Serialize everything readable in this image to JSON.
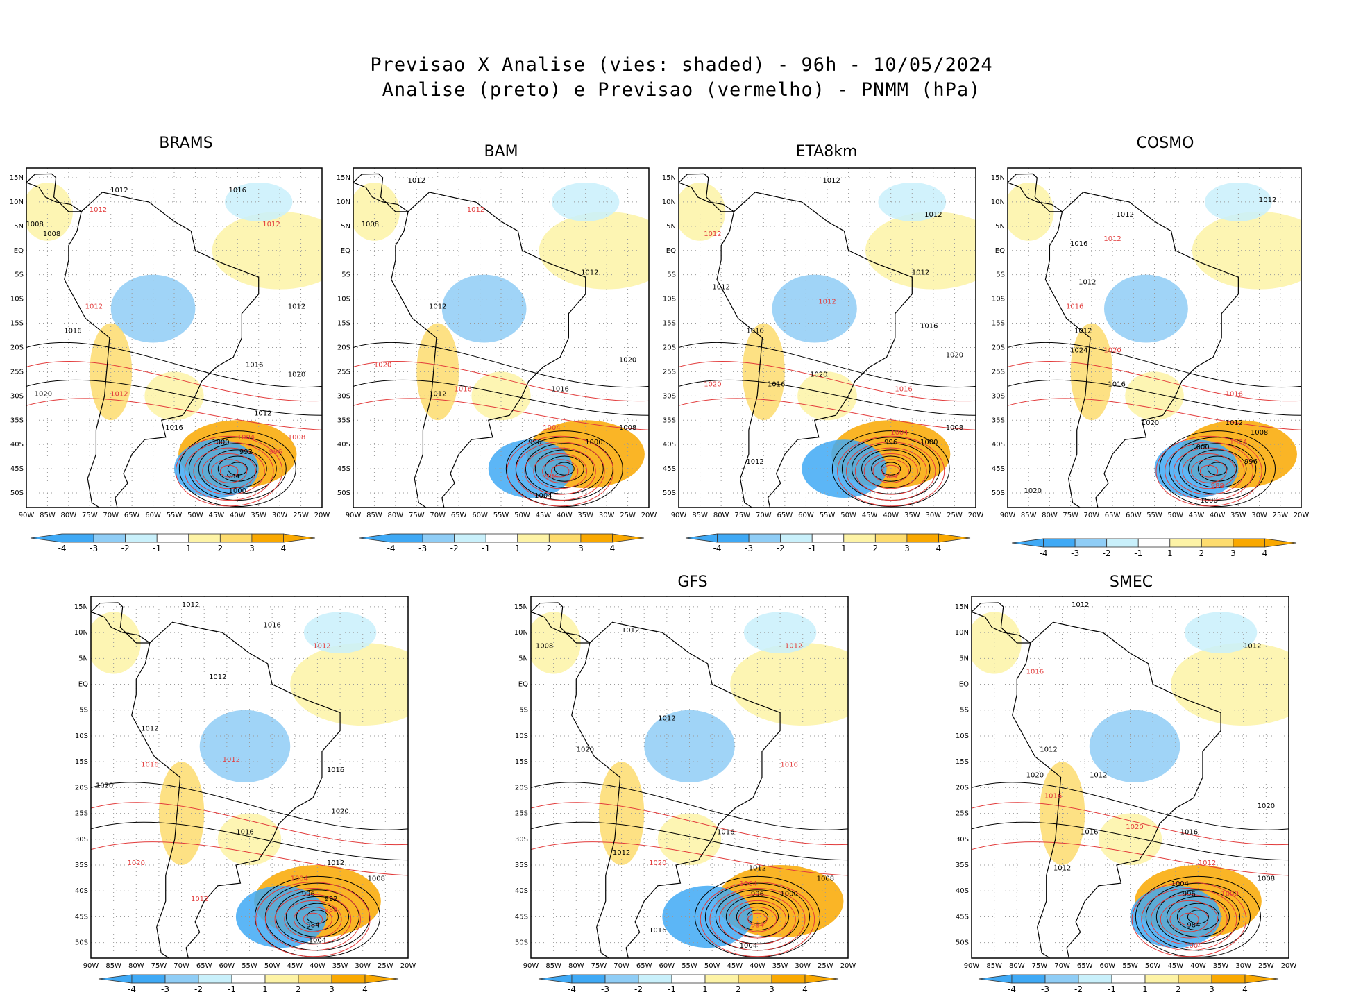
{
  "figure": {
    "title_line1": "Previsao X Analise (vies: shaded) - 96h - 10/05/2024",
    "title_line2": "Analise (preto) e Previsao (vermelho) - PNMM (hPa)"
  },
  "colors": {
    "neg4": "#3fa9f5",
    "neg3": "#8fcdf6",
    "neg2": "#c9f0fb",
    "pos2": "#fdf3a6",
    "pos3": "#fddc6e",
    "pos4": "#f9a800",
    "analysis": "#000000",
    "forecast": "#e23b3b",
    "grid": "#9a9a9a"
  },
  "axes": {
    "lat_labels": [
      "15N",
      "10N",
      "5N",
      "EQ",
      "5S",
      "10S",
      "15S",
      "20S",
      "25S",
      "30S",
      "35S",
      "40S",
      "45S",
      "50S"
    ],
    "lon_labels": [
      "90W",
      "85W",
      "80W",
      "75W",
      "70W",
      "65W",
      "60W",
      "55W",
      "50W",
      "45W",
      "40W",
      "35W",
      "30W",
      "25W",
      "20W"
    ]
  },
  "colorbar": {
    "labels": [
      "-4",
      "-3",
      "-2",
      "-1",
      "1",
      "2",
      "3",
      "4"
    ]
  },
  "panels": [
    {
      "id": "brams",
      "title": "BRAMS",
      "isobars": [
        {
          "text": "1016",
          "lon": -40,
          "lat": 12
        },
        {
          "text": "1012",
          "lon": -68,
          "lat": 12
        },
        {
          "text": "1012",
          "lon": -73,
          "lat": 8
        },
        {
          "text": "1008",
          "lon": -88,
          "lat": 5
        },
        {
          "text": "1008",
          "lon": -84,
          "lat": 3
        },
        {
          "text": "1012",
          "lon": -32,
          "lat": 5
        },
        {
          "text": "1012",
          "lon": -26,
          "lat": -12
        },
        {
          "text": "1016",
          "lon": -79,
          "lat": -17
        },
        {
          "text": "1012",
          "lon": -74,
          "lat": -12
        },
        {
          "text": "1016",
          "lon": -36,
          "lat": -24
        },
        {
          "text": "1020",
          "lon": -86,
          "lat": -30
        },
        {
          "text": "1012",
          "lon": -68,
          "lat": -30
        },
        {
          "text": "1016",
          "lon": -55,
          "lat": -37
        },
        {
          "text": "1012",
          "lon": -34,
          "lat": -34
        },
        {
          "text": "1004",
          "lon": -38,
          "lat": -39
        },
        {
          "text": "1000",
          "lon": -44,
          "lat": -40
        },
        {
          "text": "992",
          "lon": -38,
          "lat": -42
        },
        {
          "text": "996",
          "lon": -31,
          "lat": -42
        },
        {
          "text": "984",
          "lon": -41,
          "lat": -47
        },
        {
          "text": "1000",
          "lon": -40,
          "lat": -50
        },
        {
          "text": "1008",
          "lon": -26,
          "lat": -39
        },
        {
          "text": "1020",
          "lon": -26,
          "lat": -26
        }
      ]
    },
    {
      "id": "bam",
      "title": "BAM",
      "isobars": [
        {
          "text": "1012",
          "lon": -75,
          "lat": 14
        },
        {
          "text": "1008",
          "lon": -86,
          "lat": 5
        },
        {
          "text": "1012",
          "lon": -61,
          "lat": 8
        },
        {
          "text": "1012",
          "lon": -34,
          "lat": -5
        },
        {
          "text": "1012",
          "lon": -70,
          "lat": -12
        },
        {
          "text": "1020",
          "lon": -83,
          "lat": -24
        },
        {
          "text": "1016",
          "lon": -41,
          "lat": -29
        },
        {
          "text": "1020",
          "lon": -25,
          "lat": -23
        },
        {
          "text": "1016",
          "lon": -64,
          "lat": -29
        },
        {
          "text": "1012",
          "lon": -70,
          "lat": -30
        },
        {
          "text": "1008",
          "lon": -25,
          "lat": -37
        },
        {
          "text": "1004",
          "lon": -43,
          "lat": -37
        },
        {
          "text": "1000",
          "lon": -33,
          "lat": -40
        },
        {
          "text": "996",
          "lon": -47,
          "lat": -40
        },
        {
          "text": "984",
          "lon": -43,
          "lat": -47
        },
        {
          "text": "1004",
          "lon": -45,
          "lat": -51
        }
      ]
    },
    {
      "id": "eta8km",
      "title": "ETA8km",
      "isobars": [
        {
          "text": "1012",
          "lon": -54,
          "lat": 14
        },
        {
          "text": "1012",
          "lon": -30,
          "lat": 7
        },
        {
          "text": "1012",
          "lon": -82,
          "lat": 3
        },
        {
          "text": "1012",
          "lon": -80,
          "lat": -8
        },
        {
          "text": "1012",
          "lon": -33,
          "lat": -5
        },
        {
          "text": "1012",
          "lon": -55,
          "lat": -11
        },
        {
          "text": "1016",
          "lon": -31,
          "lat": -16
        },
        {
          "text": "1020",
          "lon": -25,
          "lat": -22
        },
        {
          "text": "1020",
          "lon": -82,
          "lat": -28
        },
        {
          "text": "1016",
          "lon": -72,
          "lat": -17
        },
        {
          "text": "1020",
          "lon": -57,
          "lat": -26
        },
        {
          "text": "1016",
          "lon": -37,
          "lat": -29
        },
        {
          "text": "1016",
          "lon": -67,
          "lat": -28
        },
        {
          "text": "1008",
          "lon": -25,
          "lat": -37
        },
        {
          "text": "1004",
          "lon": -38,
          "lat": -38
        },
        {
          "text": "996",
          "lon": -40,
          "lat": -40
        },
        {
          "text": "1000",
          "lon": -31,
          "lat": -40
        },
        {
          "text": "984",
          "lon": -40,
          "lat": -47
        },
        {
          "text": "1012",
          "lon": -72,
          "lat": -44
        }
      ]
    },
    {
      "id": "cosmo",
      "title": "COSMO",
      "isobars": [
        {
          "text": "1012",
          "lon": -62,
          "lat": 7
        },
        {
          "text": "1012",
          "lon": -28,
          "lat": 10
        },
        {
          "text": "1012",
          "lon": -65,
          "lat": 2
        },
        {
          "text": "1016",
          "lon": -73,
          "lat": 1
        },
        {
          "text": "1012",
          "lon": -71,
          "lat": -7
        },
        {
          "text": "1016",
          "lon": -74,
          "lat": -12
        },
        {
          "text": "1012",
          "lon": -72,
          "lat": -17
        },
        {
          "text": "1024",
          "lon": -73,
          "lat": -21
        },
        {
          "text": "1020",
          "lon": -65,
          "lat": -21
        },
        {
          "text": "1016",
          "lon": -64,
          "lat": -28
        },
        {
          "text": "1020",
          "lon": -56,
          "lat": -36
        },
        {
          "text": "1016",
          "lon": -36,
          "lat": -30
        },
        {
          "text": "1012",
          "lon": -36,
          "lat": -36
        },
        {
          "text": "1008",
          "lon": -30,
          "lat": -38
        },
        {
          "text": "1004",
          "lon": -35,
          "lat": -40
        },
        {
          "text": "1000",
          "lon": -44,
          "lat": -41
        },
        {
          "text": "996",
          "lon": -32,
          "lat": -44
        },
        {
          "text": "988",
          "lon": -40,
          "lat": -49
        },
        {
          "text": "1000",
          "lon": -42,
          "lat": -52
        },
        {
          "text": "1020",
          "lon": -84,
          "lat": -50
        }
      ]
    },
    {
      "id": "unnamed",
      "title": "",
      "isobars": [
        {
          "text": "1012",
          "lon": -68,
          "lat": 15
        },
        {
          "text": "1016",
          "lon": -50,
          "lat": 11
        },
        {
          "text": "1012",
          "lon": -39,
          "lat": 7
        },
        {
          "text": "1012",
          "lon": -62,
          "lat": 1
        },
        {
          "text": "1012",
          "lon": -77,
          "lat": -9
        },
        {
          "text": "1016",
          "lon": -77,
          "lat": -16
        },
        {
          "text": "1016",
          "lon": -36,
          "lat": -17
        },
        {
          "text": "1020",
          "lon": -87,
          "lat": -20
        },
        {
          "text": "1012",
          "lon": -59,
          "lat": -15
        },
        {
          "text": "1016",
          "lon": -56,
          "lat": -29
        },
        {
          "text": "1020",
          "lon": -35,
          "lat": -25
        },
        {
          "text": "1020",
          "lon": -80,
          "lat": -35
        },
        {
          "text": "1012",
          "lon": -36,
          "lat": -35
        },
        {
          "text": "1008",
          "lon": -27,
          "lat": -38
        },
        {
          "text": "1004",
          "lon": -44,
          "lat": -38
        },
        {
          "text": "996",
          "lon": -42,
          "lat": -41
        },
        {
          "text": "992",
          "lon": -37,
          "lat": -42
        },
        {
          "text": "988",
          "lon": -37,
          "lat": -44
        },
        {
          "text": "984",
          "lon": -41,
          "lat": -47
        },
        {
          "text": "1004",
          "lon": -40,
          "lat": -50
        },
        {
          "text": "1012",
          "lon": -66,
          "lat": -42
        }
      ]
    },
    {
      "id": "gfs",
      "title": "GFS",
      "isobars": [
        {
          "text": "1012",
          "lon": -68,
          "lat": 10
        },
        {
          "text": "1008",
          "lon": -87,
          "lat": 7
        },
        {
          "text": "1012",
          "lon": -32,
          "lat": 7
        },
        {
          "text": "1012",
          "lon": -60,
          "lat": -7
        },
        {
          "text": "1020",
          "lon": -78,
          "lat": -13
        },
        {
          "text": "1016",
          "lon": -33,
          "lat": -16
        },
        {
          "text": "1016",
          "lon": -47,
          "lat": -29
        },
        {
          "text": "1012",
          "lon": -70,
          "lat": -33
        },
        {
          "text": "1020",
          "lon": -62,
          "lat": -35
        },
        {
          "text": "1012",
          "lon": -40,
          "lat": -36
        },
        {
          "text": "1008",
          "lon": -25,
          "lat": -38
        },
        {
          "text": "1004",
          "lon": -42,
          "lat": -39
        },
        {
          "text": "1000",
          "lon": -33,
          "lat": -41
        },
        {
          "text": "996",
          "lon": -40,
          "lat": -41
        },
        {
          "text": "984",
          "lon": -40,
          "lat": -47
        },
        {
          "text": "1004",
          "lon": -42,
          "lat": -51
        },
        {
          "text": "1016",
          "lon": -62,
          "lat": -48
        }
      ]
    },
    {
      "id": "smec",
      "title": "SMEC",
      "isobars": [
        {
          "text": "1012",
          "lon": -66,
          "lat": 15
        },
        {
          "text": "1012",
          "lon": -28,
          "lat": 7
        },
        {
          "text": "1016",
          "lon": -76,
          "lat": 2
        },
        {
          "text": "1012",
          "lon": -73,
          "lat": -13
        },
        {
          "text": "1020",
          "lon": -76,
          "lat": -18
        },
        {
          "text": "1016",
          "lon": -72,
          "lat": -22
        },
        {
          "text": "1012",
          "lon": -62,
          "lat": -18
        },
        {
          "text": "1016",
          "lon": -64,
          "lat": -29
        },
        {
          "text": "1020",
          "lon": -54,
          "lat": -28
        },
        {
          "text": "1020",
          "lon": -25,
          "lat": -24
        },
        {
          "text": "1016",
          "lon": -42,
          "lat": -29
        },
        {
          "text": "1012",
          "lon": -38,
          "lat": -35
        },
        {
          "text": "1008",
          "lon": -25,
          "lat": -38
        },
        {
          "text": "1004",
          "lon": -44,
          "lat": -39
        },
        {
          "text": "1000",
          "lon": -33,
          "lat": -41
        },
        {
          "text": "996",
          "lon": -42,
          "lat": -41
        },
        {
          "text": "984",
          "lon": -41,
          "lat": -47
        },
        {
          "text": "1004",
          "lon": -41,
          "lat": -51
        },
        {
          "text": "1012",
          "lon": -70,
          "lat": -36
        }
      ]
    }
  ]
}
